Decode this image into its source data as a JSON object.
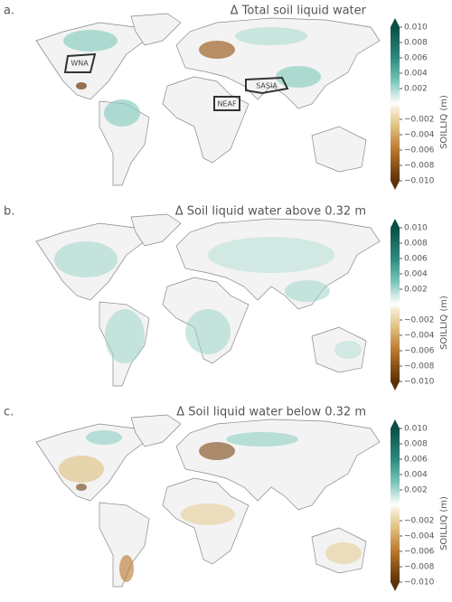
{
  "panels": [
    {
      "label": "a.",
      "title": "Δ Total soil liquid water",
      "regions": [
        "WNA",
        "NEAF",
        "SASIA"
      ],
      "colorbar": {
        "label": "SOILLIQ (m)",
        "range": [
          -0.01,
          0.01
        ],
        "ticks": [
          {
            "value": 0.01,
            "label": "0.010"
          },
          {
            "value": 0.008,
            "label": "0.008"
          },
          {
            "value": 0.006,
            "label": "0.006"
          },
          {
            "value": 0.004,
            "label": "0.004"
          },
          {
            "value": 0.002,
            "label": "0.002"
          },
          {
            "value": -0.002,
            "label": "−0.002"
          },
          {
            "value": -0.004,
            "label": "−0.004"
          },
          {
            "value": -0.006,
            "label": "−0.006"
          },
          {
            "value": -0.008,
            "label": "−0.008"
          },
          {
            "value": -0.01,
            "label": "−0.010"
          }
        ]
      }
    },
    {
      "label": "b.",
      "title": "Δ Soil liquid water above 0.32 m",
      "colorbar": {
        "label": "SOILLIQ (m)",
        "range": [
          -0.01,
          0.01
        ],
        "ticks": [
          {
            "value": 0.01,
            "label": "0.010"
          },
          {
            "value": 0.008,
            "label": "0.008"
          },
          {
            "value": 0.006,
            "label": "0.006"
          },
          {
            "value": 0.004,
            "label": "0.004"
          },
          {
            "value": 0.002,
            "label": "0.002"
          },
          {
            "value": -0.002,
            "label": "−0.002"
          },
          {
            "value": -0.004,
            "label": "−0.004"
          },
          {
            "value": -0.006,
            "label": "−0.006"
          },
          {
            "value": -0.008,
            "label": "−0.008"
          },
          {
            "value": -0.01,
            "label": "−0.010"
          }
        ]
      }
    },
    {
      "label": "c.",
      "title": "Δ Soil liquid water below 0.32 m",
      "colorbar": {
        "label": "SOILLIQ (m)",
        "range": [
          -0.01,
          0.01
        ],
        "ticks": [
          {
            "value": 0.01,
            "label": "0.010"
          },
          {
            "value": 0.008,
            "label": "0.008"
          },
          {
            "value": 0.006,
            "label": "0.006"
          },
          {
            "value": 0.004,
            "label": "0.004"
          },
          {
            "value": 0.002,
            "label": "0.002"
          },
          {
            "value": -0.002,
            "label": "−0.002"
          },
          {
            "value": -0.004,
            "label": "−0.004"
          },
          {
            "value": -0.006,
            "label": "−0.006"
          },
          {
            "value": -0.008,
            "label": "−0.008"
          },
          {
            "value": -0.01,
            "label": "−0.010"
          }
        ]
      }
    }
  ]
}
